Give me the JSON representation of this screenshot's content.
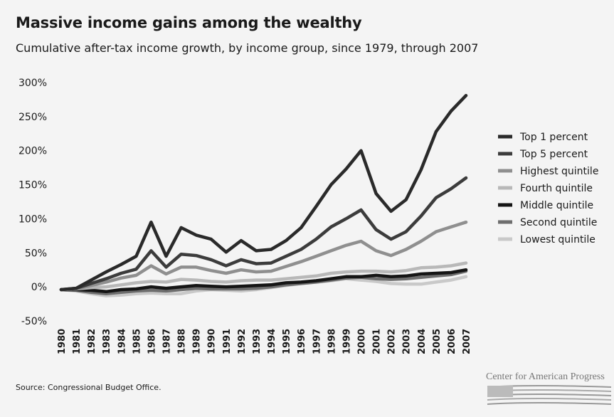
{
  "title": "Massive income gains among the wealthy",
  "subtitle": "Cumulative after-tax income growth, by income group, since 1979, through 2007",
  "source": "Source: Congressional Budget Office.",
  "logo_text": "Center for American Progress",
  "chart_data": {
    "type": "line",
    "title": "Massive income gains among the wealthy",
    "subtitle": "Cumulative after-tax income growth, by income group, since 1979, through 2007",
    "x": [
      "1980",
      "1981",
      "1982",
      "1983",
      "1984",
      "1985",
      "1986",
      "1987",
      "1988",
      "1989",
      "1990",
      "1991",
      "1992",
      "1993",
      "1994",
      "1995",
      "1996",
      "1997",
      "1998",
      "1999",
      "2000",
      "2001",
      "2002",
      "2003",
      "2004",
      "2005",
      "2006",
      "2007"
    ],
    "yticks": [
      "300%",
      "250%",
      "200%",
      "150%",
      "100%",
      "50%",
      "0%",
      "-50%"
    ],
    "ytick_values": [
      300,
      250,
      200,
      150,
      100,
      50,
      0,
      -50
    ],
    "ylim": [
      -50,
      300
    ],
    "legend_position": "right",
    "grid": false,
    "series": [
      {
        "name": "Top 1 percent",
        "color": "#2a2a2a",
        "values": [
          -4,
          -2,
          10,
          22,
          33,
          45,
          95,
          45,
          87,
          76,
          70,
          51,
          68,
          53,
          55,
          68,
          87,
          118,
          150,
          173,
          200,
          137,
          111,
          128,
          172,
          228,
          258,
          281
        ]
      },
      {
        "name": "Top 5 percent",
        "color": "#3c3c3c",
        "values": [
          -4,
          -2,
          5,
          12,
          20,
          26,
          53,
          29,
          48,
          46,
          40,
          31,
          40,
          34,
          35,
          45,
          55,
          70,
          88,
          100,
          113,
          84,
          70,
          81,
          104,
          131,
          144,
          160
        ]
      },
      {
        "name": "Highest quintile",
        "color": "#8f8f8f",
        "values": [
          -4,
          -3,
          2,
          7,
          13,
          17,
          31,
          19,
          29,
          29,
          24,
          20,
          25,
          22,
          23,
          30,
          37,
          45,
          53,
          61,
          67,
          53,
          46,
          55,
          67,
          81,
          88,
          95
        ]
      },
      {
        "name": "Fourth quintile",
        "color": "#b8b8b8",
        "values": [
          -4,
          -3,
          -1,
          0,
          3,
          6,
          8,
          7,
          11,
          10,
          8,
          7,
          9,
          10,
          10,
          12,
          14,
          16,
          20,
          22,
          23,
          23,
          22,
          24,
          28,
          29,
          31,
          35
        ]
      },
      {
        "name": "Middle quintile",
        "color": "#151515",
        "values": [
          -4,
          -4,
          -5,
          -7,
          -4,
          -3,
          0,
          -2,
          0,
          2,
          1,
          0,
          1,
          2,
          3,
          6,
          7,
          9,
          12,
          15,
          15,
          17,
          15,
          16,
          19,
          20,
          21,
          25
        ]
      },
      {
        "name": "Second quintile",
        "color": "#6e6e6e",
        "values": [
          -4,
          -5,
          -8,
          -10,
          -8,
          -6,
          -5,
          -6,
          -4,
          -2,
          -3,
          -3,
          -3,
          -2,
          0,
          3,
          5,
          7,
          10,
          13,
          14,
          12,
          11,
          12,
          14,
          16,
          18,
          23
        ]
      },
      {
        "name": "Lowest quintile",
        "color": "#c9c9c9",
        "values": [
          -4,
          -6,
          -10,
          -13,
          -12,
          -10,
          -9,
          -10,
          -10,
          -6,
          -4,
          -5,
          -6,
          -4,
          -1,
          2,
          5,
          7,
          9,
          12,
          10,
          8,
          5,
          4,
          4,
          7,
          10,
          15
        ]
      }
    ]
  }
}
